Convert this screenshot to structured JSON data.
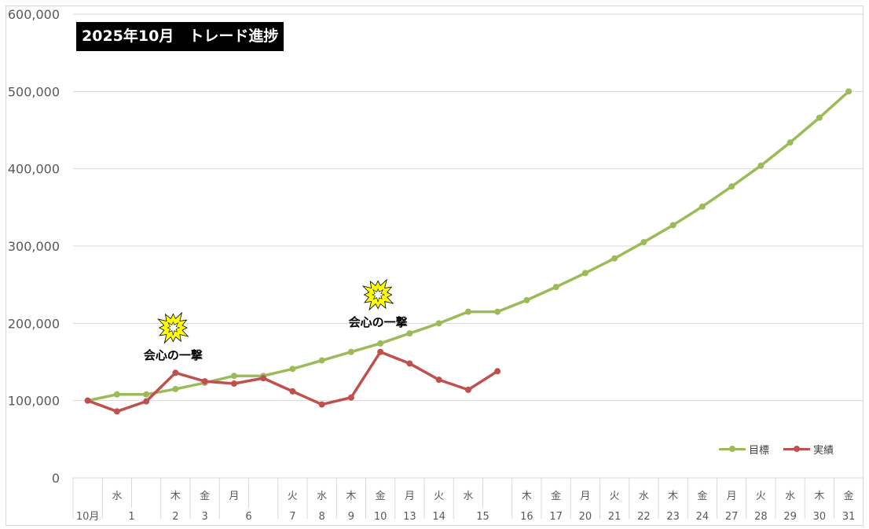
{
  "chart_data": {
    "type": "line",
    "title": "2025年10月　トレード進捗",
    "y_ticks": [
      "600,000",
      "500,000",
      "400,000",
      "300,000",
      "200,000",
      "100,000",
      "0"
    ],
    "ylim": [
      0,
      600000
    ],
    "grid": true,
    "legend_position": "bottom-right",
    "categories": [
      {
        "weekday": "",
        "day": "10月"
      },
      {
        "weekday": "水",
        "day": "1"
      },
      {
        "weekday": "",
        "day": ""
      },
      {
        "weekday": "木",
        "day": "2"
      },
      {
        "weekday": "金",
        "day": "3"
      },
      {
        "weekday": "月",
        "day": "6"
      },
      {
        "weekday": "",
        "day": ""
      },
      {
        "weekday": "火",
        "day": "7"
      },
      {
        "weekday": "水",
        "day": "8"
      },
      {
        "weekday": "木",
        "day": "9"
      },
      {
        "weekday": "金",
        "day": "10"
      },
      {
        "weekday": "月",
        "day": "13"
      },
      {
        "weekday": "火",
        "day": "14"
      },
      {
        "weekday": "水",
        "day": "15"
      },
      {
        "weekday": "",
        "day": ""
      },
      {
        "weekday": "木",
        "day": "16"
      },
      {
        "weekday": "金",
        "day": "17"
      },
      {
        "weekday": "月",
        "day": "20"
      },
      {
        "weekday": "火",
        "day": "21"
      },
      {
        "weekday": "水",
        "day": "22"
      },
      {
        "weekday": "木",
        "day": "23"
      },
      {
        "weekday": "金",
        "day": "24"
      },
      {
        "weekday": "月",
        "day": "27"
      },
      {
        "weekday": "火",
        "day": "28"
      },
      {
        "weekday": "水",
        "day": "29"
      },
      {
        "weekday": "木",
        "day": "30"
      },
      {
        "weekday": "金",
        "day": "31"
      }
    ],
    "merged_day_groups": [
      [
        1,
        2
      ],
      [
        5,
        6
      ],
      [
        13,
        14
      ]
    ],
    "series": [
      {
        "name": "目標",
        "color": "#9bbb59",
        "values": [
          100000,
          108000,
          108000,
          115000,
          123000,
          132000,
          132000,
          141000,
          152000,
          163000,
          174000,
          187000,
          200000,
          215000,
          215000,
          230000,
          247000,
          265000,
          284000,
          305000,
          327000,
          351000,
          377000,
          404000,
          434000,
          466000,
          500000
        ]
      },
      {
        "name": "実績",
        "color": "#c0504d",
        "values": [
          100000,
          86000,
          99000,
          136000,
          125000,
          122000,
          129000,
          112000,
          95000,
          104000,
          163000,
          148000,
          127000,
          114000,
          138000,
          null,
          null,
          null,
          null,
          null,
          null,
          null,
          null,
          null,
          null,
          null,
          null
        ]
      }
    ],
    "annotations": [
      {
        "text": "会心の一撃",
        "category_index": 3,
        "icon": "burst-icon",
        "color": "#ffff00"
      },
      {
        "text": "会心の一撃",
        "category_index": 10,
        "icon": "burst-icon",
        "color": "#ffff00"
      }
    ]
  }
}
